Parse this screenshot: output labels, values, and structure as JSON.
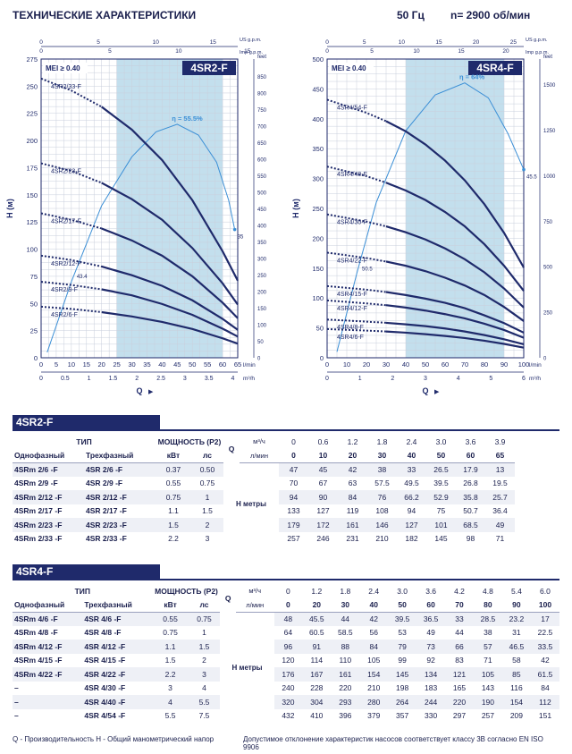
{
  "header": {
    "title": "ТЕХНИЧЕСКИЕ ХАРАКТЕРИСТИКИ",
    "frequency": "50 Гц",
    "speed": "n= 2900 об/мин"
  },
  "chart_data": [
    {
      "type": "line",
      "model": "4SR2-F",
      "mei": "MEI ≥ 0.40",
      "xlabel": "Q",
      "ylabel": "H (м)",
      "x_units": "l/min",
      "xlim": [
        0,
        65
      ],
      "ylim": [
        0,
        275
      ],
      "x_ticks": [
        0,
        5,
        10,
        15,
        20,
        25,
        30,
        35,
        40,
        45,
        50,
        55,
        60,
        65
      ],
      "y_ticks": [
        0,
        25,
        50,
        75,
        100,
        125,
        150,
        175,
        200,
        225,
        250,
        275
      ],
      "top_axis": {
        "label": "US g.p.m.",
        "ticks": [
          "0",
          "5",
          "10",
          "15"
        ],
        "label2": "Imp g.p.m.",
        "ticks2": [
          "0",
          "5",
          "10",
          "15"
        ]
      },
      "bottom_axis2": {
        "label": "m³/h",
        "ticks": [
          "0",
          "0.5",
          "1",
          "1.5",
          "2",
          "2.5",
          "3",
          "3.5",
          "4"
        ]
      },
      "right_axis": {
        "label": "feet",
        "ticks": [
          "0",
          "50",
          "100",
          "150",
          "200",
          "250",
          "300",
          "350",
          "400",
          "450",
          "500",
          "550",
          "600",
          "650",
          "700",
          "750",
          "800",
          "850"
        ]
      },
      "range_band": [
        25,
        60
      ],
      "efficiency": {
        "label": "η = 55.5%",
        "peak_x": 45,
        "peak_y": 215,
        "start_value": "43.4",
        "end_value": "35",
        "points": [
          [
            2,
            5
          ],
          [
            10,
            70
          ],
          [
            20,
            140
          ],
          [
            30,
            185
          ],
          [
            38,
            208
          ],
          [
            45,
            215
          ],
          [
            52,
            205
          ],
          [
            58,
            180
          ],
          [
            62,
            145
          ],
          [
            64,
            118
          ]
        ]
      },
      "series": [
        {
          "name": "4SR2/33-F",
          "x": [
            0,
            10,
            20,
            30,
            40,
            50,
            60,
            65
          ],
          "y": [
            257,
            246,
            231,
            210,
            182,
            145,
            98,
            71
          ]
        },
        {
          "name": "4SR2/23-F",
          "x": [
            0,
            10,
            20,
            30,
            40,
            50,
            60,
            65
          ],
          "y": [
            179,
            172,
            161,
            146,
            127,
            101,
            68.5,
            49
          ]
        },
        {
          "name": "4SR2/17-F",
          "x": [
            0,
            10,
            20,
            30,
            40,
            50,
            60,
            65
          ],
          "y": [
            133,
            127,
            119,
            108,
            94,
            75,
            50.7,
            36.4
          ]
        },
        {
          "name": "4SR2/12-F",
          "x": [
            0,
            10,
            20,
            30,
            40,
            50,
            60,
            65
          ],
          "y": [
            94,
            90,
            84,
            76,
            66.2,
            52.9,
            35.8,
            25.7
          ]
        },
        {
          "name": "4SR2/9-F",
          "x": [
            0,
            10,
            20,
            30,
            40,
            50,
            60,
            65
          ],
          "y": [
            70,
            67,
            63,
            57.5,
            49.5,
            39.5,
            26.8,
            19.5
          ]
        },
        {
          "name": "4SR2/6-F",
          "x": [
            0,
            10,
            20,
            30,
            40,
            50,
            60,
            65
          ],
          "y": [
            47,
            45,
            42,
            38,
            33,
            26.5,
            17.9,
            13
          ]
        }
      ]
    },
    {
      "type": "line",
      "model": "4SR4-F",
      "mei": "MEI ≥ 0.40",
      "xlabel": "Q",
      "ylabel": "H (м)",
      "x_units": "l/min",
      "xlim": [
        0,
        100
      ],
      "ylim": [
        0,
        500
      ],
      "x_ticks": [
        0,
        10,
        20,
        30,
        40,
        50,
        60,
        70,
        80,
        90,
        100
      ],
      "y_ticks": [
        0,
        50,
        100,
        150,
        200,
        250,
        300,
        350,
        400,
        450,
        500
      ],
      "top_axis": {
        "label": "US g.p.m.",
        "ticks": [
          "0",
          "5",
          "10",
          "15",
          "20",
          "25"
        ],
        "label2": "Imp g.p.m.",
        "ticks2": [
          "0",
          "5",
          "10",
          "15",
          "20"
        ]
      },
      "bottom_axis2": {
        "label": "m³/h",
        "ticks": [
          "0",
          "1",
          "2",
          "3",
          "4",
          "5",
          "6"
        ]
      },
      "right_axis": {
        "label": "feet",
        "ticks": [
          "0",
          "250",
          "500",
          "750",
          "1000",
          "1250",
          "1500"
        ]
      },
      "range_band": [
        40,
        90
      ],
      "efficiency": {
        "label": "η = 64%",
        "peak_x": 70,
        "peak_y": 460,
        "start_value": "50.5",
        "end_value": "45.5",
        "points": [
          [
            5,
            10
          ],
          [
            15,
            140
          ],
          [
            25,
            260
          ],
          [
            40,
            380
          ],
          [
            55,
            440
          ],
          [
            70,
            460
          ],
          [
            82,
            435
          ],
          [
            92,
            375
          ],
          [
            100,
            315
          ]
        ]
      },
      "series": [
        {
          "name": "4SR4/54-F",
          "x": [
            0,
            20,
            30,
            40,
            50,
            60,
            70,
            80,
            90,
            100
          ],
          "y": [
            432,
            410,
            396,
            379,
            357,
            330,
            297,
            257,
            209,
            151
          ]
        },
        {
          "name": "4SR4/40-F",
          "x": [
            0,
            20,
            30,
            40,
            50,
            60,
            70,
            80,
            90,
            100
          ],
          "y": [
            320,
            304,
            293,
            280,
            264,
            244,
            220,
            190,
            154,
            112
          ]
        },
        {
          "name": "4SR4/30-F",
          "x": [
            0,
            20,
            30,
            40,
            50,
            60,
            70,
            80,
            90,
            100
          ],
          "y": [
            240,
            228,
            220,
            210,
            198,
            183,
            165,
            143,
            116,
            84
          ]
        },
        {
          "name": "4SR4/22-F",
          "x": [
            0,
            20,
            30,
            40,
            50,
            60,
            70,
            80,
            90,
            100
          ],
          "y": [
            176,
            167,
            161,
            154,
            145,
            134,
            121,
            105,
            85,
            61.5
          ]
        },
        {
          "name": "4SR4/15-F",
          "x": [
            0,
            20,
            30,
            40,
            50,
            60,
            70,
            80,
            90,
            100
          ],
          "y": [
            120,
            114,
            110,
            105,
            99,
            92,
            83,
            71,
            58,
            42
          ]
        },
        {
          "name": "4SR4/12-F",
          "x": [
            0,
            20,
            30,
            40,
            50,
            60,
            70,
            80,
            90,
            100
          ],
          "y": [
            96,
            91,
            88,
            84,
            79,
            73,
            66,
            57,
            46.5,
            33.5
          ]
        },
        {
          "name": "4SR4/8-F",
          "x": [
            0,
            20,
            30,
            40,
            50,
            60,
            70,
            80,
            90,
            100
          ],
          "y": [
            64,
            60.5,
            58.5,
            56,
            53,
            49,
            44,
            38,
            31,
            22.5
          ]
        },
        {
          "name": "4SR4/6-F",
          "x": [
            0,
            20,
            30,
            40,
            50,
            60,
            70,
            80,
            90,
            100
          ],
          "y": [
            48,
            45.5,
            44,
            42,
            39.5,
            36.5,
            33,
            28.5,
            23.2,
            17
          ]
        }
      ]
    }
  ],
  "tables": [
    {
      "band": "4SR2-F",
      "h_type": "ТИП",
      "h_power": "МОЩНОСТЬ (P2)",
      "h_single": "Однофазный",
      "h_three": "Трехфазный",
      "h_kw": "кВт",
      "h_hp": "лс",
      "q_label": "Q",
      "unit_m3": "м³/ч",
      "unit_lmin": "л/мин",
      "h_label": "H метры",
      "q_m3": [
        "0",
        "0.6",
        "1.2",
        "1.8",
        "2.4",
        "3.0",
        "3.6",
        "3.9"
      ],
      "q_lmin": [
        "0",
        "10",
        "20",
        "30",
        "40",
        "50",
        "60",
        "65"
      ],
      "rows": [
        {
          "single": "4SRm 2/6  -F",
          "three": "4SR 2/6  -F",
          "kw": "0.37",
          "hp": "0.50",
          "h": [
            "47",
            "45",
            "42",
            "38",
            "33",
            "26.5",
            "17.9",
            "13"
          ]
        },
        {
          "single": "4SRm 2/9  -F",
          "three": "4SR 2/9  -F",
          "kw": "0.55",
          "hp": "0.75",
          "h": [
            "70",
            "67",
            "63",
            "57.5",
            "49.5",
            "39.5",
            "26.8",
            "19.5"
          ]
        },
        {
          "single": "4SRm 2/12 -F",
          "three": "4SR 2/12 -F",
          "kw": "0.75",
          "hp": "1",
          "h": [
            "94",
            "90",
            "84",
            "76",
            "66.2",
            "52.9",
            "35.8",
            "25.7"
          ]
        },
        {
          "single": "4SRm 2/17 -F",
          "three": "4SR 2/17 -F",
          "kw": "1.1",
          "hp": "1.5",
          "h": [
            "133",
            "127",
            "119",
            "108",
            "94",
            "75",
            "50.7",
            "36.4"
          ]
        },
        {
          "single": "4SRm 2/23 -F",
          "three": "4SR 2/23 -F",
          "kw": "1.5",
          "hp": "2",
          "h": [
            "179",
            "172",
            "161",
            "146",
            "127",
            "101",
            "68.5",
            "49"
          ]
        },
        {
          "single": "4SRm 2/33 -F",
          "three": "4SR 2/33 -F",
          "kw": "2.2",
          "hp": "3",
          "h": [
            "257",
            "246",
            "231",
            "210",
            "182",
            "145",
            "98",
            "71"
          ]
        }
      ]
    },
    {
      "band": "4SR4-F",
      "h_type": "ТИП",
      "h_power": "МОЩНОСТЬ (P2)",
      "h_single": "Однофазный",
      "h_three": "Трехфазный",
      "h_kw": "кВт",
      "h_hp": "лс",
      "q_label": "Q",
      "unit_m3": "м³/ч",
      "unit_lmin": "л/мин",
      "h_label": "H метры",
      "q_m3": [
        "0",
        "1.2",
        "1.8",
        "2.4",
        "3.0",
        "3.6",
        "4.2",
        "4.8",
        "5.4",
        "6.0"
      ],
      "q_lmin": [
        "0",
        "20",
        "30",
        "40",
        "50",
        "60",
        "70",
        "80",
        "90",
        "100"
      ],
      "rows": [
        {
          "single": "4SRm 4/6  -F",
          "three": "4SR 4/6  -F",
          "kw": "0.55",
          "hp": "0.75",
          "h": [
            "48",
            "45.5",
            "44",
            "42",
            "39.5",
            "36.5",
            "33",
            "28.5",
            "23.2",
            "17"
          ]
        },
        {
          "single": "4SRm 4/8  -F",
          "three": "4SR 4/8  -F",
          "kw": "0.75",
          "hp": "1",
          "h": [
            "64",
            "60.5",
            "58.5",
            "56",
            "53",
            "49",
            "44",
            "38",
            "31",
            "22.5"
          ]
        },
        {
          "single": "4SRm 4/12 -F",
          "three": "4SR 4/12 -F",
          "kw": "1.1",
          "hp": "1.5",
          "h": [
            "96",
            "91",
            "88",
            "84",
            "79",
            "73",
            "66",
            "57",
            "46.5",
            "33.5"
          ]
        },
        {
          "single": "4SRm 4/15 -F",
          "three": "4SR 4/15 -F",
          "kw": "1.5",
          "hp": "2",
          "h": [
            "120",
            "114",
            "110",
            "105",
            "99",
            "92",
            "83",
            "71",
            "58",
            "42"
          ]
        },
        {
          "single": "4SRm 4/22 -F",
          "three": "4SR 4/22 -F",
          "kw": "2.2",
          "hp": "3",
          "h": [
            "176",
            "167",
            "161",
            "154",
            "145",
            "134",
            "121",
            "105",
            "85",
            "61.5"
          ]
        },
        {
          "single": "–",
          "three": "4SR 4/30 -F",
          "kw": "3",
          "hp": "4",
          "h": [
            "240",
            "228",
            "220",
            "210",
            "198",
            "183",
            "165",
            "143",
            "116",
            "84"
          ]
        },
        {
          "single": "–",
          "three": "4SR 4/40 -F",
          "kw": "4",
          "hp": "5.5",
          "h": [
            "320",
            "304",
            "293",
            "280",
            "264",
            "244",
            "220",
            "190",
            "154",
            "112"
          ]
        },
        {
          "single": "–",
          "three": "4SR 4/54 -F",
          "kw": "5.5",
          "hp": "7.5",
          "h": [
            "432",
            "410",
            "396",
            "379",
            "357",
            "330",
            "297",
            "257",
            "209",
            "151"
          ]
        }
      ]
    }
  ],
  "footer": {
    "left": "Q - Производительность   H - Общий манометрический напор",
    "right": "Допустимое отклонение характеристик насосов соответствует классу 3B согласно EN ISO 9906"
  },
  "colors": {
    "navy": "#1f2a6b",
    "band": "#b9d9ea",
    "eff": "#3b8fd6",
    "grid": "#c9cfdc"
  }
}
